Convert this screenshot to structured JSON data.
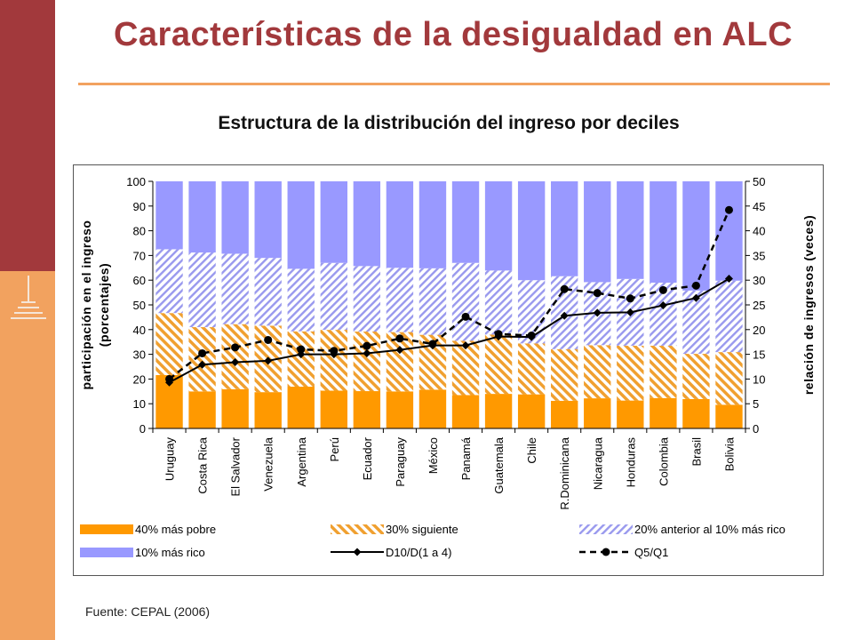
{
  "slide": {
    "title": "Características de la desigualdad en ALC",
    "source": "Fuente: CEPAL (2006)"
  },
  "colors": {
    "sidebar_top": "#a2393c",
    "sidebar_bottom": "#f2a25f",
    "pobre": "#ff9900",
    "siguiente": "#f0a030",
    "anterior": "#9999ee",
    "rico": "#9999ff",
    "line": "#000000"
  },
  "chart_data": {
    "type": "bar",
    "stacked": true,
    "title": "Estructura de la distribución del ingreso por deciles",
    "ylabel": [
      "participación en el ingreso",
      "(porcentajes)"
    ],
    "y2label": "relación de ingresos (veces)",
    "ylim": [
      0,
      100
    ],
    "y2lim": [
      0,
      50
    ],
    "yticks": [
      0,
      10,
      20,
      30,
      40,
      50,
      60,
      70,
      80,
      90,
      100
    ],
    "y2ticks": [
      0,
      5,
      10,
      15,
      20,
      25,
      30,
      35,
      40,
      45,
      50
    ],
    "categories": [
      "Uruguay",
      "Costa Rica",
      "El Salvador",
      "Venezuela",
      "Argentina",
      "Perú",
      "Ecuador",
      "Paraguay",
      "México",
      "Panamá",
      "Guatemala",
      "Chile",
      "R.Dominicana",
      "Nicaragua",
      "Honduras",
      "Colombia",
      "Brasil",
      "Bolivia"
    ],
    "series": [
      {
        "name": "40% más pobre",
        "kind": "bar",
        "pattern": "solid",
        "values": [
          21.6,
          15.0,
          15.9,
          14.7,
          16.9,
          15.3,
          15.1,
          15.0,
          15.7,
          13.5,
          14.0,
          13.8,
          11.2,
          12.2,
          11.3,
          12.3,
          11.9,
          9.6
        ]
      },
      {
        "name": "30% siguiente",
        "kind": "bar",
        "pattern": "diag-orange",
        "values": [
          25.1,
          26.0,
          26.3,
          26.9,
          22.4,
          24.6,
          24.1,
          24.0,
          22.2,
          22.0,
          24.0,
          20.6,
          20.9,
          21.5,
          22.2,
          21.2,
          18.3,
          21.3
        ]
      },
      {
        "name": "20% anterior al 10% más rico",
        "kind": "bar",
        "pattern": "diag-blue",
        "values": [
          25.8,
          30.2,
          28.5,
          27.4,
          25.3,
          27.1,
          26.5,
          26.0,
          26.9,
          31.5,
          25.9,
          25.6,
          29.5,
          25.5,
          27.0,
          25.5,
          25.6,
          28.9
        ]
      },
      {
        "name": "10% más rico",
        "kind": "bar",
        "pattern": "solid",
        "values": [
          27.5,
          28.8,
          29.3,
          31.0,
          35.4,
          33.0,
          34.3,
          35.0,
          35.2,
          33.0,
          36.1,
          40.0,
          38.4,
          40.8,
          39.5,
          41.0,
          44.2,
          40.2
        ]
      },
      {
        "name": "D10/D(1 a 4)",
        "kind": "line",
        "axis": "right",
        "style": "solid",
        "values": [
          9.3,
          12.9,
          13.4,
          13.7,
          15.0,
          15.0,
          15.2,
          15.9,
          16.8,
          16.8,
          18.6,
          18.5,
          22.8,
          23.4,
          23.5,
          24.9,
          26.4,
          30.3
        ]
      },
      {
        "name": "Q5/Q1",
        "kind": "line",
        "axis": "right",
        "style": "dashed",
        "values": [
          10.0,
          15.2,
          16.4,
          17.9,
          16.0,
          15.7,
          16.7,
          18.2,
          17.1,
          22.6,
          19.1,
          18.8,
          28.2,
          27.4,
          26.3,
          28.0,
          28.9,
          44.2
        ]
      }
    ]
  }
}
